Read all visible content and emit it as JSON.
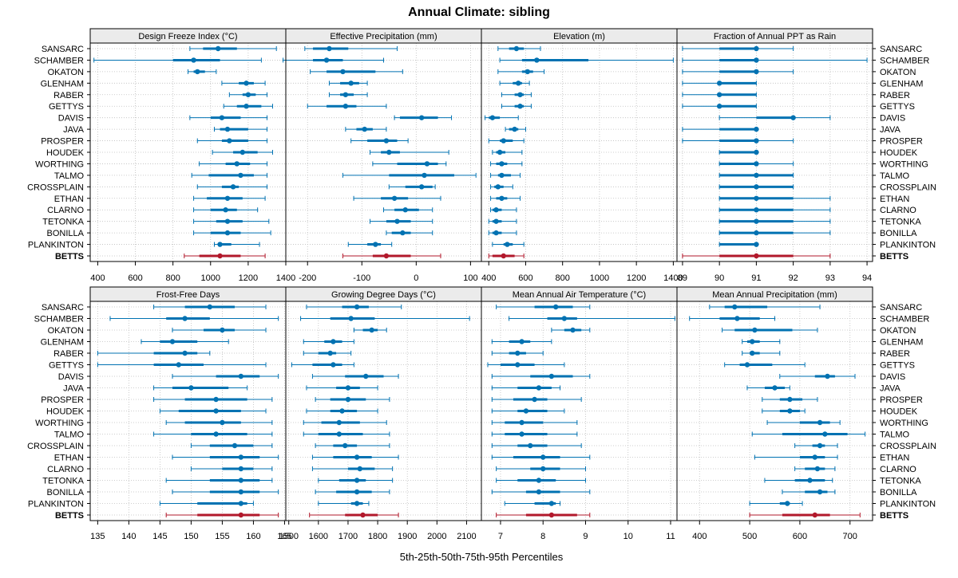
{
  "chart_data": {
    "type": "dotplot-percentiles",
    "title": "Annual Climate: sibling",
    "xlabel": "5th-25th-50th-75th-95th Percentiles",
    "series_names": [
      "SANSARC",
      "SCHAMBER",
      "OKATON",
      "GLENHAM",
      "RABER",
      "GETTYS",
      "DAVIS",
      "JAVA",
      "PROSPER",
      "HOUDEK",
      "WORTHING",
      "TALMO",
      "CROSSPLAIN",
      "ETHAN",
      "CLARNO",
      "TETONKA",
      "BONILLA",
      "PLANKINTON",
      "BETTS"
    ],
    "highlight": "BETTS",
    "colors": {
      "normal": "#0072B2",
      "highlight": "#B2182B",
      "grid": "#BEBEBE",
      "strip": "#EBEBEB"
    },
    "panels": [
      {
        "title": "Design Freeze Index (°C)",
        "xlim": [
          360,
          1400
        ],
        "ticks": [
          400,
          600,
          800,
          1000,
          1200,
          1400
        ],
        "data": [
          [
            890,
            960,
            1040,
            1140,
            1350
          ],
          [
            380,
            800,
            910,
            1050,
            1270
          ],
          [
            880,
            910,
            930,
            970,
            1030
          ],
          [
            1060,
            1150,
            1190,
            1230,
            1290
          ],
          [
            1100,
            1170,
            1200,
            1240,
            1300
          ],
          [
            1070,
            1140,
            1190,
            1270,
            1330
          ],
          [
            890,
            1000,
            1060,
            1160,
            1300
          ],
          [
            1020,
            1050,
            1090,
            1200,
            1300
          ],
          [
            930,
            1060,
            1100,
            1200,
            1300
          ],
          [
            1010,
            1120,
            1170,
            1250,
            1330
          ],
          [
            940,
            1080,
            1140,
            1210,
            1300
          ],
          [
            900,
            990,
            1160,
            1230,
            1300
          ],
          [
            930,
            1060,
            1120,
            1150,
            1300
          ],
          [
            910,
            980,
            1090,
            1170,
            1290
          ],
          [
            910,
            1000,
            1080,
            1140,
            1250
          ],
          [
            910,
            1030,
            1090,
            1170,
            1310
          ],
          [
            910,
            1000,
            1090,
            1160,
            1320
          ],
          [
            1020,
            1040,
            1050,
            1110,
            1260
          ],
          [
            860,
            940,
            1050,
            1160,
            1290
          ]
        ]
      },
      {
        "title": "Effective Precipitation (mm)",
        "xlim": [
          -240,
          120
        ],
        "ticks": [
          -200,
          -100,
          0,
          100
        ],
        "data": [
          [
            -205,
            -190,
            -160,
            -125,
            -35
          ],
          [
            -245,
            -190,
            -165,
            -135,
            -60
          ],
          [
            -195,
            -165,
            -135,
            -75,
            -25
          ],
          [
            -160,
            -140,
            -120,
            -105,
            -90
          ],
          [
            -160,
            -140,
            -130,
            -115,
            -90
          ],
          [
            -200,
            -165,
            -130,
            -110,
            -55
          ],
          [
            -40,
            -30,
            10,
            40,
            65
          ],
          [
            -130,
            -110,
            -95,
            -80,
            -55
          ],
          [
            -120,
            -90,
            -55,
            -35,
            -15
          ],
          [
            -85,
            -65,
            -50,
            -30,
            60
          ],
          [
            -80,
            -35,
            20,
            40,
            55
          ],
          [
            -135,
            -50,
            15,
            70,
            110
          ],
          [
            -50,
            -20,
            10,
            30,
            35
          ],
          [
            -115,
            -65,
            -40,
            -15,
            45
          ],
          [
            -60,
            -40,
            -20,
            5,
            30
          ],
          [
            -85,
            -55,
            -35,
            -10,
            30
          ],
          [
            -55,
            -45,
            -25,
            -10,
            30
          ],
          [
            -125,
            -90,
            -75,
            -65,
            -45
          ],
          [
            -135,
            -80,
            -55,
            -10,
            45
          ]
        ]
      },
      {
        "title": "Elevation (m)",
        "xlim": [
          360,
          1420
        ],
        "ticks": [
          400,
          600,
          800,
          1000,
          1200,
          1400
        ],
        "data": [
          [
            450,
            510,
            550,
            590,
            680
          ],
          [
            460,
            580,
            660,
            940,
            1400
          ],
          [
            450,
            580,
            610,
            640,
            700
          ],
          [
            460,
            530,
            560,
            580,
            620
          ],
          [
            470,
            540,
            570,
            590,
            630
          ],
          [
            470,
            540,
            570,
            590,
            630
          ],
          [
            380,
            400,
            420,
            460,
            560
          ],
          [
            490,
            510,
            540,
            560,
            600
          ],
          [
            400,
            460,
            480,
            530,
            590
          ],
          [
            420,
            440,
            460,
            490,
            580
          ],
          [
            410,
            440,
            470,
            500,
            580
          ],
          [
            410,
            450,
            470,
            520,
            570
          ],
          [
            410,
            430,
            450,
            480,
            530
          ],
          [
            410,
            440,
            470,
            500,
            570
          ],
          [
            410,
            420,
            440,
            470,
            550
          ],
          [
            400,
            420,
            440,
            470,
            550
          ],
          [
            400,
            420,
            440,
            470,
            550
          ],
          [
            420,
            480,
            500,
            530,
            590
          ],
          [
            400,
            420,
            480,
            540,
            590
          ]
        ]
      },
      {
        "title": "Fraction of Annual PPT as Rain",
        "xlim": [
          88.85,
          94.15
        ],
        "ticks": [
          89,
          90,
          91,
          92,
          93,
          94
        ],
        "data": [
          [
            89,
            90,
            91,
            91,
            92
          ],
          [
            89,
            90,
            91,
            91,
            94
          ],
          [
            89,
            90,
            91,
            91,
            92
          ],
          [
            89,
            90,
            90,
            91,
            91
          ],
          [
            89,
            90,
            90,
            91,
            91
          ],
          [
            89,
            90,
            90,
            91,
            91
          ],
          [
            90,
            91,
            92,
            92,
            93
          ],
          [
            89,
            90,
            91,
            91,
            91
          ],
          [
            89,
            90,
            91,
            91,
            92
          ],
          [
            90,
            90,
            91,
            91,
            91
          ],
          [
            90,
            90,
            91,
            91,
            92
          ],
          [
            90,
            90,
            91,
            92,
            92
          ],
          [
            90,
            90,
            91,
            92,
            92
          ],
          [
            90,
            90,
            91,
            92,
            93
          ],
          [
            90,
            90,
            91,
            92,
            93
          ],
          [
            90,
            90,
            91,
            92,
            93
          ],
          [
            90,
            90,
            91,
            92,
            93
          ],
          [
            90,
            90,
            91,
            91,
            91
          ],
          [
            89,
            90,
            91,
            92,
            93
          ]
        ]
      },
      {
        "title": "Frost-Free Days",
        "xlim": [
          133.8,
          165.2
        ],
        "ticks": [
          135,
          140,
          145,
          150,
          155,
          160,
          165
        ],
        "data": [
          [
            144,
            149,
            153,
            157,
            162
          ],
          [
            137,
            146,
            149,
            153,
            164
          ],
          [
            147,
            152,
            155,
            157,
            162
          ],
          [
            142,
            145,
            147,
            151,
            156
          ],
          [
            135,
            144,
            149,
            151,
            153
          ],
          [
            135,
            144,
            148,
            152,
            162
          ],
          [
            147,
            154,
            158,
            161,
            164
          ],
          [
            144,
            147,
            150,
            156,
            159
          ],
          [
            144,
            149,
            154,
            159,
            163
          ],
          [
            145,
            148,
            154,
            158,
            162
          ],
          [
            146,
            149,
            155,
            158,
            163
          ],
          [
            144,
            150,
            154,
            159,
            163
          ],
          [
            150,
            153,
            157,
            160,
            163
          ],
          [
            147,
            153,
            158,
            161,
            164
          ],
          [
            150,
            155,
            158,
            160,
            163
          ],
          [
            146,
            153,
            158,
            161,
            163
          ],
          [
            147,
            153,
            158,
            161,
            164
          ],
          [
            145,
            151,
            158,
            159,
            160
          ],
          [
            146,
            151,
            158,
            161,
            164
          ]
        ]
      },
      {
        "title": "Growing Degree Days (°C)",
        "xlim": [
          1490,
          2150
        ],
        "ticks": [
          1500,
          1600,
          1700,
          1800,
          1900,
          2000,
          2100
        ],
        "data": [
          [
            1560,
            1680,
            1730,
            1770,
            1880
          ],
          [
            1540,
            1640,
            1710,
            1790,
            2110
          ],
          [
            1720,
            1750,
            1780,
            1800,
            1830
          ],
          [
            1550,
            1620,
            1650,
            1680,
            1720
          ],
          [
            1550,
            1600,
            1640,
            1660,
            1710
          ],
          [
            1510,
            1580,
            1650,
            1680,
            1720
          ],
          [
            1580,
            1690,
            1760,
            1820,
            1870
          ],
          [
            1560,
            1660,
            1700,
            1740,
            1800
          ],
          [
            1590,
            1640,
            1700,
            1760,
            1840
          ],
          [
            1560,
            1640,
            1680,
            1730,
            1800
          ],
          [
            1550,
            1610,
            1670,
            1740,
            1830
          ],
          [
            1550,
            1600,
            1670,
            1750,
            1840
          ],
          [
            1590,
            1650,
            1690,
            1730,
            1840
          ],
          [
            1580,
            1650,
            1730,
            1780,
            1870
          ],
          [
            1580,
            1700,
            1740,
            1790,
            1850
          ],
          [
            1600,
            1670,
            1730,
            1760,
            1850
          ],
          [
            1590,
            1660,
            1730,
            1780,
            1840
          ],
          [
            1600,
            1710,
            1730,
            1750,
            1770
          ],
          [
            1570,
            1690,
            1750,
            1800,
            1870
          ]
        ]
      },
      {
        "title": "Mean Annual Air Temperature (°C)",
        "xlim": [
          6.55,
          11.15
        ],
        "ticks": [
          7,
          8,
          9,
          10,
          11
        ],
        "data": [
          [
            6.9,
            7.8,
            8.3,
            8.7,
            9.1
          ],
          [
            7.2,
            8.1,
            8.5,
            8.8,
            11.1
          ],
          [
            8.2,
            8.5,
            8.7,
            8.9,
            9.1
          ],
          [
            6.8,
            7.2,
            7.5,
            7.7,
            8.2
          ],
          [
            6.8,
            7.2,
            7.4,
            7.6,
            8.0
          ],
          [
            6.7,
            7.0,
            7.4,
            7.8,
            8.5
          ],
          [
            6.8,
            7.7,
            8.2,
            8.7,
            9.1
          ],
          [
            6.8,
            7.4,
            7.9,
            8.2,
            8.4
          ],
          [
            6.8,
            7.3,
            7.8,
            8.1,
            8.9
          ],
          [
            6.8,
            7.4,
            7.6,
            8.1,
            8.5
          ],
          [
            6.8,
            7.1,
            7.5,
            8.0,
            8.8
          ],
          [
            6.8,
            7.1,
            7.5,
            8.1,
            8.8
          ],
          [
            6.8,
            7.4,
            7.7,
            8.1,
            8.9
          ],
          [
            6.8,
            7.3,
            8.0,
            8.4,
            9.1
          ],
          [
            6.9,
            7.7,
            8.0,
            8.4,
            9.0
          ],
          [
            6.9,
            7.4,
            7.9,
            8.3,
            9.0
          ],
          [
            6.8,
            7.6,
            7.9,
            8.4,
            9.1
          ],
          [
            7.1,
            7.8,
            8.2,
            8.3,
            8.4
          ],
          [
            6.9,
            7.6,
            8.2,
            8.8,
            9.1
          ]
        ]
      },
      {
        "title": "Mean Annual Precipitation (mm)",
        "xlim": [
          355,
          745
        ],
        "ticks": [
          400,
          500,
          600,
          700
        ],
        "data": [
          [
            420,
            450,
            470,
            535,
            640
          ],
          [
            380,
            440,
            475,
            520,
            550
          ],
          [
            445,
            470,
            510,
            585,
            635
          ],
          [
            485,
            495,
            505,
            520,
            560
          ],
          [
            485,
            500,
            505,
            520,
            560
          ],
          [
            450,
            480,
            495,
            545,
            610
          ],
          [
            560,
            630,
            655,
            670,
            710
          ],
          [
            495,
            530,
            550,
            570,
            580
          ],
          [
            525,
            560,
            580,
            605,
            635
          ],
          [
            525,
            560,
            580,
            600,
            610
          ],
          [
            535,
            600,
            640,
            660,
            680
          ],
          [
            505,
            565,
            650,
            695,
            730
          ],
          [
            590,
            625,
            640,
            650,
            675
          ],
          [
            510,
            600,
            630,
            650,
            675
          ],
          [
            590,
            610,
            635,
            650,
            670
          ],
          [
            530,
            590,
            620,
            650,
            665
          ],
          [
            565,
            610,
            640,
            655,
            670
          ],
          [
            500,
            560,
            575,
            580,
            605
          ],
          [
            500,
            565,
            630,
            660,
            720
          ]
        ]
      }
    ]
  }
}
